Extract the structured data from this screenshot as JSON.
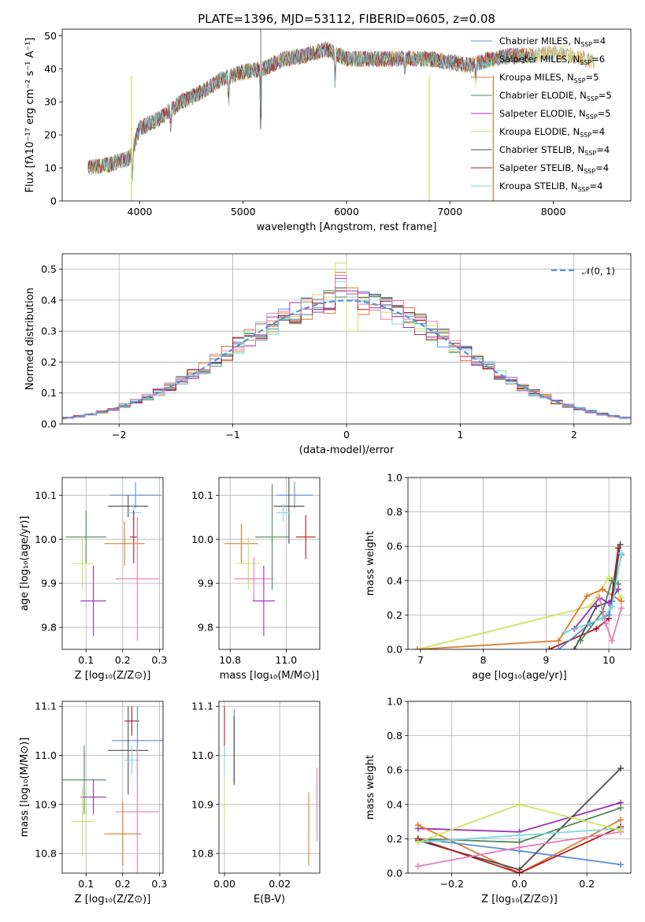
{
  "colors": {
    "Chabrier MILES": "#5b8fd6",
    "Salpeter MILES": "#e07a2e",
    "Kroupa MILES": "#e07a2e",
    "Chabrier ELODIE": "#4f8a5a",
    "Salpeter ELODIE": "#9b30b8",
    "Kroupa ELODIE": "#cde35a",
    "Chabrier STELIB": "#4d4d4d",
    "Salpeter STELIB": "#b01c1c",
    "Kroupa STELIB": "#7ad9e0",
    "pink": "#e57fb5",
    "normal": "#5b8fd6"
  },
  "chart_data": [
    {
      "id": "spectrum",
      "type": "line",
      "title": "PLATE=1396, MJD=53112, FIBERID=0605, z=0.08",
      "xlabel": "wavelength [Angstrom, rest frame]",
      "ylabel": "Flux [fλ10⁻¹⁷ erg cm⁻² s⁻¹ A⁻¹]",
      "xlim": [
        3250,
        8750
      ],
      "ylim": [
        0,
        52
      ],
      "xticks": [
        4000,
        5000,
        6000,
        7000,
        8000
      ],
      "yticks": [
        0,
        10,
        20,
        30,
        40,
        50
      ],
      "legend_position": "top-right",
      "legend": [
        "Chabrier MILES, N_SSP=4",
        "Salpeter MILES, N_SSP=6",
        "Kroupa MILES, N_SSP=5",
        "Chabrier ELODIE, N_SSP=5",
        "Salpeter ELODIE, N_SSP=5",
        "Kroupa ELODIE, N_SSP=4",
        "Chabrier STELIB, N_SSP=4",
        "Salpeter STELIB, N_SSP=4",
        "Kroupa STELIB, N_SSP=4"
      ],
      "legend_colors": [
        "#5b8fd6",
        "#e07a2e",
        "#e07a2e",
        "#4f8a5a",
        "#9b30b8",
        "#cde35a",
        "#4d4d4d",
        "#b01c1c",
        "#7ad9e0"
      ],
      "continuum": {
        "x": [
          3500,
          3700,
          3900,
          4000,
          4200,
          4400,
          4600,
          4800,
          5000,
          5200,
          5400,
          5600,
          5800,
          6000,
          6200,
          6400,
          6600,
          6800,
          7000,
          7200,
          7400,
          7600,
          7800,
          8000,
          8200,
          8400
        ],
        "y": [
          10,
          11,
          13,
          22,
          25,
          30,
          33,
          37,
          39,
          40,
          43,
          44,
          46,
          43,
          43,
          43,
          43,
          43,
          42,
          41,
          43,
          44,
          44,
          45,
          44,
          42
        ]
      }
    },
    {
      "id": "residuals",
      "type": "line",
      "xlabel": "(data-model)/error",
      "ylabel": "Normed distribution",
      "xlim": [
        -2.5,
        2.5
      ],
      "ylim": [
        0,
        0.55
      ],
      "xticks": [
        -2,
        -1,
        0,
        1,
        2
      ],
      "xticklabels": [
        "−2",
        "−1",
        "0",
        "1",
        "2"
      ],
      "yticks": [
        0.0,
        0.1,
        0.2,
        0.3,
        0.4,
        0.5
      ],
      "legend_position": "top-right",
      "legend": [
        "𝒩(0, 1)"
      ],
      "series_bin_width": 0.1,
      "series": [
        {
          "color": "#5b8fd6",
          "peaks": [
            0.43,
            0.42
          ]
        },
        {
          "color": "#e07a2e",
          "peaks": [
            0.49,
            0.44
          ]
        },
        {
          "color": "#4f8a5a",
          "peaks": [
            0.41,
            0.4
          ]
        },
        {
          "color": "#9b30b8",
          "peaks": [
            0.47,
            0.43
          ]
        },
        {
          "color": "#cde35a",
          "peaks": [
            0.52,
            0.3
          ]
        },
        {
          "color": "#4d4d4d",
          "peaks": [
            0.44,
            0.41
          ]
        },
        {
          "color": "#b01c1c",
          "peaks": [
            0.43,
            0.42
          ]
        },
        {
          "color": "#7ad9e0",
          "peaks": [
            0.46,
            0.41
          ]
        },
        {
          "color": "#e57fb5",
          "peaks": [
            0.48,
            0.42
          ]
        }
      ]
    },
    {
      "id": "age-vs-Z",
      "type": "scatter",
      "xlabel": "Z [log₁₀(Z/Z⊙)]",
      "ylabel": "age  [log₁₀(age/yr)]",
      "xlim": [
        0.035,
        0.31
      ],
      "ylim": [
        9.75,
        10.14
      ],
      "xticks": [
        0.1,
        0.2,
        0.3
      ],
      "yticks": [
        9.8,
        9.9,
        10.0,
        10.1
      ],
      "points": [
        {
          "color": "#5b8fd6",
          "x": 0.235,
          "y": 10.1,
          "xerr": 0.07,
          "yerr": 0.03
        },
        {
          "color": "#4d4d4d",
          "x": 0.215,
          "y": 10.075,
          "xerr": 0.055,
          "yerr": 0.025
        },
        {
          "color": "#7ad9e0",
          "x": 0.23,
          "y": 10.06,
          "xerr": 0.02,
          "yerr": 0.02
        },
        {
          "color": "#4f8a5a",
          "x": 0.1,
          "y": 10.005,
          "xerr": 0.055,
          "yerr": 0.06
        },
        {
          "color": "#b01c1c",
          "x": 0.23,
          "y": 10.005,
          "xerr": 0.01,
          "yerr": 0.06
        },
        {
          "color": "#e07a2e",
          "x": 0.205,
          "y": 9.99,
          "xerr": 0.055,
          "yerr": 0.05
        },
        {
          "color": "#cde35a",
          "x": 0.09,
          "y": 9.945,
          "xerr": 0.03,
          "yerr": 0.06
        },
        {
          "color": "#e57fb5",
          "x": 0.24,
          "y": 9.91,
          "xerr": 0.06,
          "yerr": 0.14
        },
        {
          "color": "#9b30b8",
          "x": 0.12,
          "y": 9.86,
          "xerr": 0.035,
          "yerr": 0.08
        }
      ]
    },
    {
      "id": "age-vs-mass",
      "type": "scatter",
      "xlabel": "mass [log₁₀(M/M⊙)]",
      "ylabel": "",
      "xlim": [
        10.76,
        11.12
      ],
      "ylim": [
        9.75,
        10.14
      ],
      "xticks": [
        10.8,
        11.0
      ],
      "yticks": [
        9.8,
        9.9,
        10.0,
        10.1
      ],
      "points": [
        {
          "color": "#5b8fd6",
          "x": 11.03,
          "y": 10.1,
          "xerr": 0.065,
          "yerr": 0.03
        },
        {
          "color": "#4d4d4d",
          "x": 11.01,
          "y": 10.075,
          "xerr": 0.055,
          "yerr": 0.085
        },
        {
          "color": "#7ad9e0",
          "x": 10.99,
          "y": 10.06,
          "xerr": 0.025,
          "yerr": 0.02
        },
        {
          "color": "#4f8a5a",
          "x": 10.95,
          "y": 10.005,
          "xerr": 0.06,
          "yerr": 0.12
        },
        {
          "color": "#b01c1c",
          "x": 11.07,
          "y": 10.005,
          "xerr": 0.035,
          "yerr": 0.05
        },
        {
          "color": "#e07a2e",
          "x": 10.84,
          "y": 9.99,
          "xerr": 0.06,
          "yerr": 0.045
        },
        {
          "color": "#cde35a",
          "x": 10.865,
          "y": 9.945,
          "xerr": 0.045,
          "yerr": 0.06
        },
        {
          "color": "#e57fb5",
          "x": 10.885,
          "y": 9.91,
          "xerr": 0.07,
          "yerr": 0.05
        },
        {
          "color": "#9b30b8",
          "x": 10.92,
          "y": 9.86,
          "xerr": 0.04,
          "yerr": 0.08
        }
      ]
    },
    {
      "id": "massweight-vs-age",
      "type": "line",
      "xlabel": "age  [log₁₀(age/yr)]",
      "ylabel": "mass weight",
      "xlim": [
        6.8,
        10.35
      ],
      "ylim": [
        0,
        1
      ],
      "xticks": [
        7,
        8,
        9,
        10
      ],
      "yticks": [
        0.0,
        0.2,
        0.4,
        0.6,
        0.8,
        1.0
      ],
      "series": [
        {
          "color": "#cde35a",
          "x": [
            6.95,
            9.7,
            10.0,
            10.2
          ],
          "y": [
            0.0,
            0.25,
            0.42,
            0.3
          ]
        },
        {
          "color": "#e07a2e",
          "x": [
            6.95,
            9.2,
            9.65,
            9.9,
            10.2
          ],
          "y": [
            0.0,
            0.05,
            0.31,
            0.35,
            0.28
          ]
        },
        {
          "color": "#b01c1c",
          "x": [
            9.05,
            9.8,
            10.0,
            10.15
          ],
          "y": [
            0.0,
            0.12,
            0.18,
            0.59
          ]
        },
        {
          "color": "#5b8fd6",
          "x": [
            9.2,
            9.7,
            10.0,
            10.2
          ],
          "y": [
            0.0,
            0.15,
            0.2,
            0.55
          ]
        },
        {
          "color": "#4d4d4d",
          "x": [
            9.45,
            9.8,
            10.05,
            10.18
          ],
          "y": [
            0.0,
            0.25,
            0.28,
            0.61
          ]
        },
        {
          "color": "#4f8a5a",
          "x": [
            9.55,
            9.9,
            10.05,
            10.15
          ],
          "y": [
            0.05,
            0.22,
            0.4,
            0.38
          ]
        },
        {
          "color": "#9b30b8",
          "x": [
            9.45,
            9.85,
            10.0,
            10.15
          ],
          "y": [
            0.12,
            0.3,
            0.27,
            0.35
          ]
        },
        {
          "color": "#7ad9e0",
          "x": [
            9.3,
            9.9,
            10.05,
            10.2
          ],
          "y": [
            0.1,
            0.18,
            0.25,
            0.56
          ]
        },
        {
          "color": "#e57fb5",
          "x": [
            9.85,
            9.95,
            10.05,
            10.2
          ],
          "y": [
            0.3,
            0.15,
            0.05,
            0.24
          ]
        }
      ]
    },
    {
      "id": "mass-vs-Z",
      "type": "scatter",
      "xlabel": "Z [log₁₀(Z/Z⊙)]",
      "ylabel": "mass [log₁₀(M/M⊙)]",
      "xlim": [
        0.035,
        0.31
      ],
      "ylim": [
        10.76,
        11.11
      ],
      "xticks": [
        0.1,
        0.2,
        0.3
      ],
      "yticks": [
        10.8,
        10.9,
        11.0,
        11.1
      ],
      "points": [
        {
          "color": "#b01c1c",
          "x": 0.225,
          "y": 11.07,
          "xerr": 0.02,
          "yerr": 0.03
        },
        {
          "color": "#5b8fd6",
          "x": 0.24,
          "y": 11.03,
          "xerr": 0.07,
          "yerr": 0.07
        },
        {
          "color": "#4d4d4d",
          "x": 0.215,
          "y": 11.01,
          "xerr": 0.055,
          "yerr": 0.09
        },
        {
          "color": "#7ad9e0",
          "x": 0.225,
          "y": 10.99,
          "xerr": 0.02,
          "yerr": 0.03
        },
        {
          "color": "#4f8a5a",
          "x": 0.095,
          "y": 10.95,
          "xerr": 0.06,
          "yerr": 0.07
        },
        {
          "color": "#9b30b8",
          "x": 0.12,
          "y": 10.915,
          "xerr": 0.035,
          "yerr": 0.035
        },
        {
          "color": "#e57fb5",
          "x": 0.24,
          "y": 10.885,
          "xerr": 0.06,
          "yerr": 0.13
        },
        {
          "color": "#cde35a",
          "x": 0.09,
          "y": 10.865,
          "xerr": 0.03,
          "yerr": 0.07
        },
        {
          "color": "#e07a2e",
          "x": 0.2,
          "y": 10.84,
          "xerr": 0.05,
          "yerr": 0.065
        }
      ]
    },
    {
      "id": "mass-vs-ebv",
      "type": "scatter",
      "xlabel": "E(B-V)",
      "ylabel": "",
      "xlim": [
        -0.002,
        0.0345
      ],
      "ylim": [
        10.76,
        11.11
      ],
      "xticks": [
        0.0,
        0.02
      ],
      "xticklabels": [
        "0.00",
        "0.02"
      ],
      "yticks": [
        10.8,
        10.9,
        11.0,
        11.1
      ],
      "points": [
        {
          "color": "#b01c1c",
          "x": 0.0,
          "y": 11.05,
          "xerr": 0,
          "yerr": 0.05
        },
        {
          "color": "#7ad9e0",
          "x": 0.0,
          "y": 10.99,
          "xerr": 0,
          "yerr": 0.03
        },
        {
          "color": "#cde35a",
          "x": 0.0,
          "y": 10.9,
          "xerr": 0,
          "yerr": 0.06
        },
        {
          "color": "#5b8fd6",
          "x": 0.0035,
          "y": 11.02,
          "xerr": 0,
          "yerr": 0.075
        },
        {
          "color": "#4d4d4d",
          "x": 0.0035,
          "y": 11.01,
          "xerr": 0,
          "yerr": 0.07
        },
        {
          "color": "#e07a2e",
          "x": 0.0305,
          "y": 10.85,
          "xerr": 0,
          "yerr": 0.075
        },
        {
          "color": "#e57fb5",
          "x": 0.0335,
          "y": 10.9,
          "xerr": 0,
          "yerr": 0.075
        }
      ]
    },
    {
      "id": "massweight-vs-Z",
      "type": "line",
      "xlabel": "Z [log₁₀(Z/Z⊙)]",
      "ylabel": "mass weight",
      "xlim": [
        -0.33,
        0.33
      ],
      "ylim": [
        0,
        1
      ],
      "xticks": [
        -0.2,
        0.0,
        0.2
      ],
      "xticklabels": [
        "−0.2",
        "0.0",
        "0.2"
      ],
      "yticks": [
        0.0,
        0.2,
        0.4,
        0.6,
        0.8,
        1.0
      ],
      "series": [
        {
          "color": "#9b30b8",
          "x": [
            -0.3,
            0.0,
            0.3
          ],
          "y": [
            0.26,
            0.24,
            0.41
          ]
        },
        {
          "color": "#e07a2e",
          "x": [
            -0.3,
            0.0,
            0.3
          ],
          "y": [
            0.28,
            0.0,
            0.31
          ]
        },
        {
          "color": "#5b8fd6",
          "x": [
            -0.3,
            0.0,
            0.3
          ],
          "y": [
            0.2,
            0.13,
            0.05
          ]
        },
        {
          "color": "#4d4d4d",
          "x": [
            -0.3,
            0.0,
            0.3
          ],
          "y": [
            0.19,
            0.02,
            0.61
          ]
        },
        {
          "color": "#4f8a5a",
          "x": [
            -0.3,
            0.0,
            0.3
          ],
          "y": [
            0.2,
            0.18,
            0.38
          ]
        },
        {
          "color": "#b01c1c",
          "x": [
            -0.3,
            0.0,
            0.3
          ],
          "y": [
            0.2,
            0.0,
            0.27
          ]
        },
        {
          "color": "#7ad9e0",
          "x": [
            -0.3,
            0.0,
            0.3
          ],
          "y": [
            0.18,
            0.22,
            0.26
          ]
        },
        {
          "color": "#e57fb5",
          "x": [
            -0.3,
            0.0,
            0.3
          ],
          "y": [
            0.04,
            0.15,
            0.24
          ]
        },
        {
          "color": "#cde35a",
          "x": [
            -0.3,
            0.0,
            0.3
          ],
          "y": [
            0.18,
            0.4,
            0.25
          ]
        }
      ]
    }
  ]
}
